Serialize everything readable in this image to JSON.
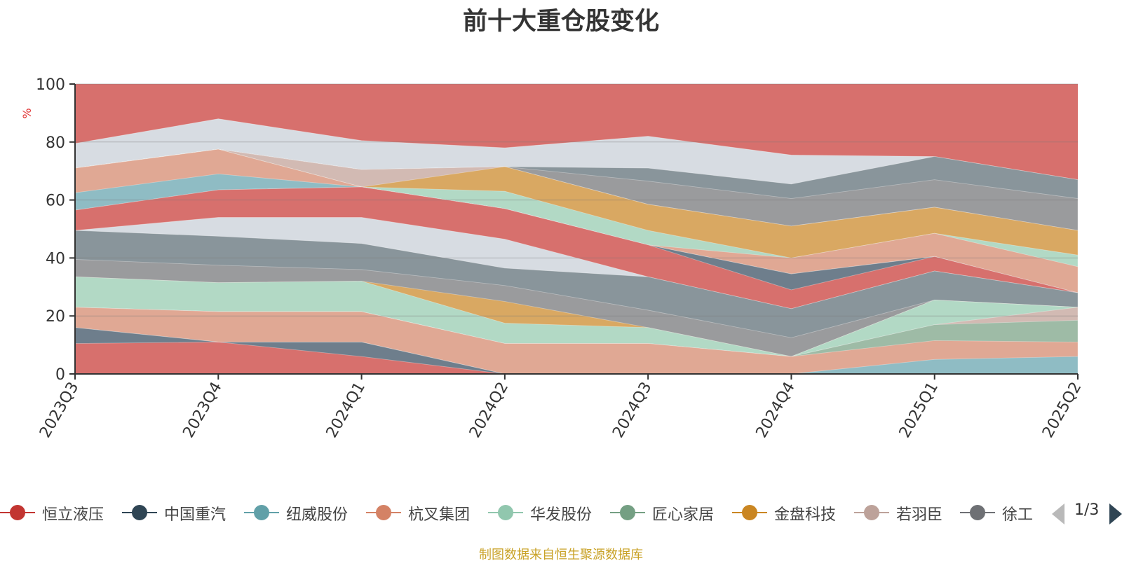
{
  "chart_data": {
    "type": "area",
    "title": "前十大重仓股变化",
    "ylabel": "%",
    "ylim": [
      0,
      100
    ],
    "yticks": [
      0,
      20,
      40,
      60,
      80,
      100
    ],
    "categories": [
      "2023Q3",
      "2023Q4",
      "2024Q1",
      "2024Q2",
      "2024Q3",
      "2024Q4",
      "2025Q1",
      "2025Q2"
    ],
    "grid": true,
    "stacked": true,
    "background_color": "#d7706d",
    "layers": [
      {
        "top": [
          10.5,
          11,
          6,
          0,
          0,
          0,
          0,
          0
        ],
        "color": "#d7706d"
      },
      {
        "top": [
          16,
          11,
          11,
          0,
          0,
          0,
          0,
          0
        ],
        "color": "#6e7e8c"
      },
      {
        "top": [
          16,
          11,
          11,
          0,
          0,
          0,
          5,
          6
        ],
        "color": "#8fbcc4"
      },
      {
        "top": [
          23,
          21.5,
          21.5,
          10.5,
          10.5,
          6,
          11.5,
          11
        ],
        "color": "#e0a894"
      },
      {
        "top": [
          23,
          21.5,
          21.5,
          10.5,
          10.5,
          6,
          17,
          18.5
        ],
        "color": "#9ebba6"
      },
      {
        "top": [
          23,
          21.5,
          21.5,
          10.5,
          10.5,
          6,
          17,
          23
        ],
        "color": "#d2bab3"
      },
      {
        "top": [
          33.5,
          31.5,
          32,
          17.5,
          16,
          6,
          25.5,
          23
        ],
        "color": "#b2d9c5"
      },
      {
        "top": [
          33.5,
          31.5,
          32,
          25,
          16,
          6,
          25.5,
          23
        ],
        "color": "#d9a862"
      },
      {
        "top": [
          39.5,
          37.5,
          36,
          30.5,
          22,
          12.5,
          25.5,
          23
        ],
        "color": "#9a9b9d"
      },
      {
        "top": [
          49.5,
          47.5,
          45,
          36.5,
          33.5,
          22.5,
          35.5,
          28
        ],
        "color": "#89959b"
      },
      {
        "top": [
          49.5,
          54,
          54,
          46.5,
          33.5,
          22.5,
          35.5,
          28
        ],
        "color": "#d7dce2"
      },
      {
        "top": [
          56.5,
          63.5,
          64.5,
          57,
          44.5,
          29,
          40.5,
          28
        ],
        "color": "#d7706d"
      },
      {
        "top": [
          56.5,
          63.5,
          64.5,
          57,
          44.5,
          34.5,
          40.5,
          28
        ],
        "color": "#6e7e8c"
      },
      {
        "top": [
          62.5,
          69,
          64.5,
          57,
          44.5,
          34.5,
          40.5,
          28
        ],
        "color": "#8fbcc4"
      },
      {
        "top": [
          71,
          77.5,
          64.5,
          57,
          44.5,
          40,
          48.5,
          37
        ],
        "color": "#e0a894"
      },
      {
        "top": [
          71,
          77.5,
          64.5,
          63,
          49.5,
          40,
          48.5,
          41
        ],
        "color": "#b2d9c5"
      },
      {
        "top": [
          71,
          77.5,
          64.5,
          71.5,
          58.5,
          51,
          57.5,
          49.5
        ],
        "color": "#d9a862"
      },
      {
        "top": [
          71,
          77.5,
          70.5,
          71.5,
          58.5,
          51,
          57.5,
          49.5
        ],
        "color": "#d2bab3"
      },
      {
        "top": [
          71,
          77.5,
          70.5,
          71.5,
          66.5,
          60.5,
          67,
          60.5
        ],
        "color": "#9a9b9d"
      },
      {
        "top": [
          71,
          77.5,
          70.5,
          71.5,
          71,
          65.5,
          75,
          67
        ],
        "color": "#89959b"
      },
      {
        "top": [
          79.5,
          88,
          80.5,
          78,
          82,
          75.5,
          75,
          67
        ],
        "color": "#d7dce2"
      }
    ]
  },
  "legend": {
    "items": [
      {
        "label": "恒立液压",
        "color": "#c23531"
      },
      {
        "label": "中国重汽",
        "color": "#2f4554"
      },
      {
        "label": "纽威股份",
        "color": "#61a0a8"
      },
      {
        "label": "杭叉集团",
        "color": "#d48265"
      },
      {
        "label": "华发股份",
        "color": "#91c7ae"
      },
      {
        "label": "匠心家居",
        "color": "#749f83"
      },
      {
        "label": "金盘科技",
        "color": "#ca8622"
      },
      {
        "label": "若羽臣",
        "color": "#bda29a"
      },
      {
        "label": "徐工",
        "color": "#6e7074"
      }
    ],
    "page_text": "1/3"
  },
  "source_note": "制图数据来自恒生聚源数据库"
}
